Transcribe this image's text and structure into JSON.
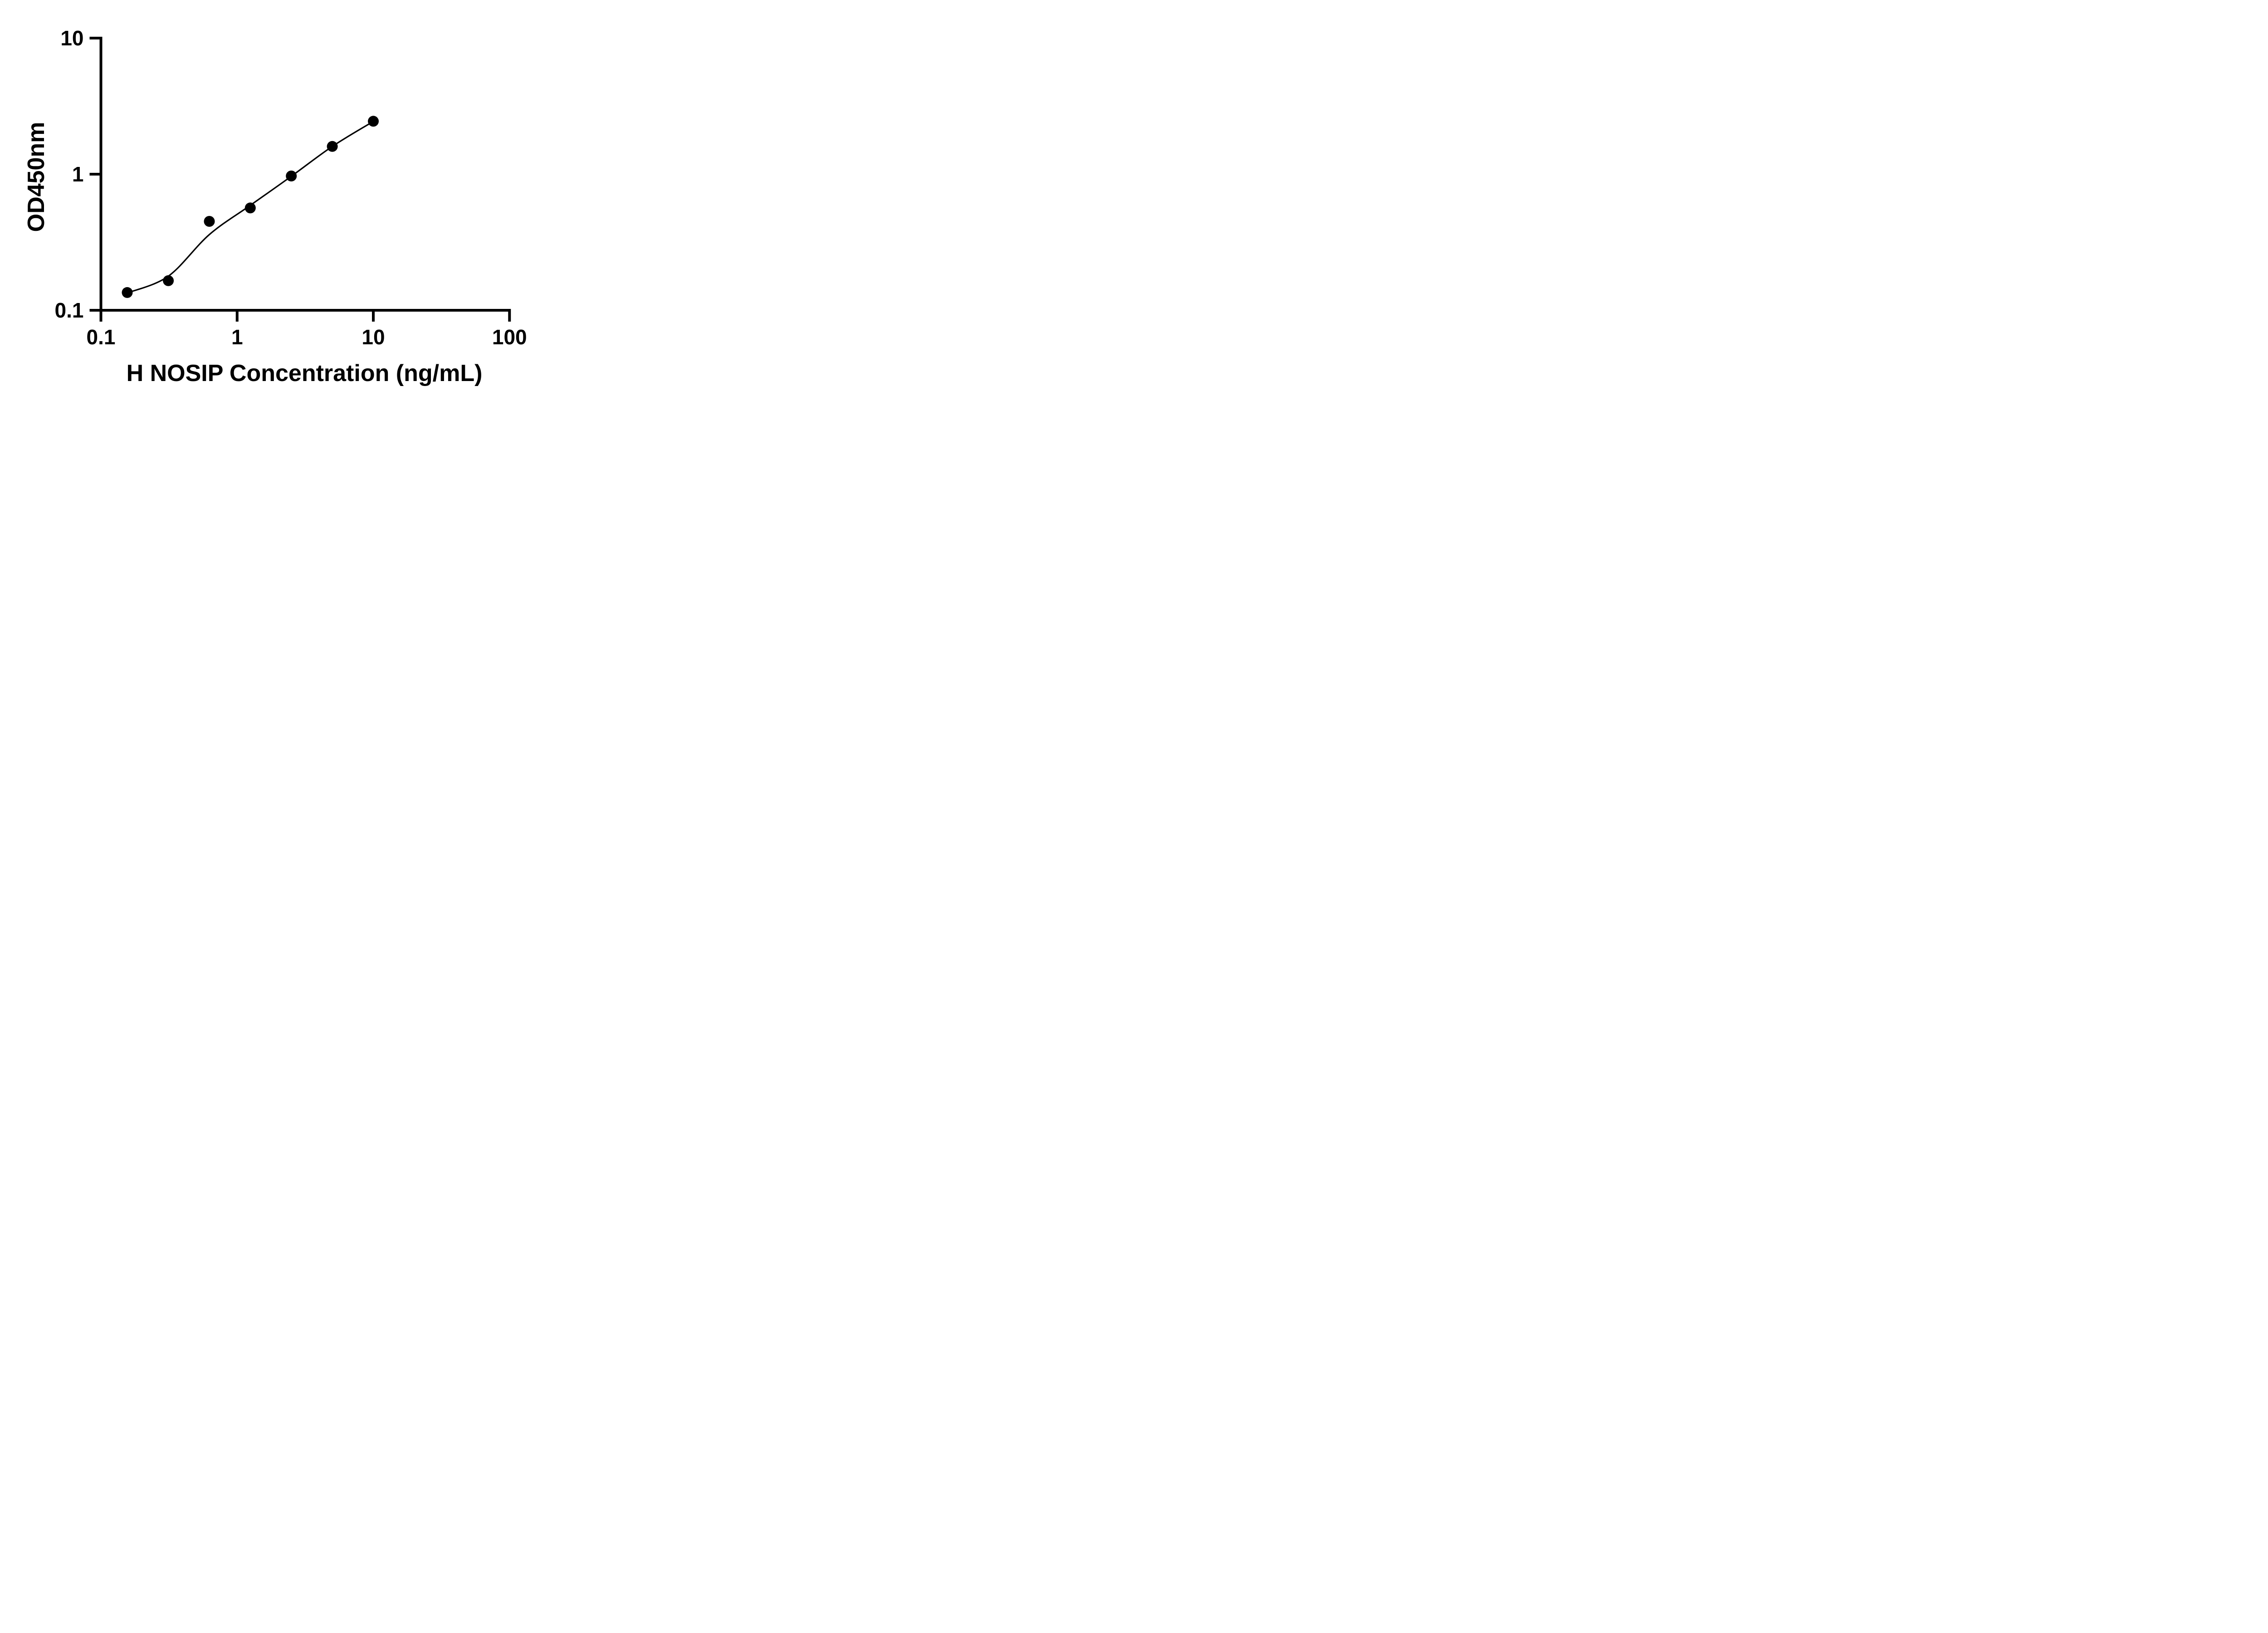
{
  "chart_data": {
    "type": "scatter",
    "title": "",
    "xlabel": "H NOSIP Concentration (ng/mL)",
    "ylabel": "OD450nm",
    "x_scale": "log",
    "y_scale": "log",
    "xlim": [
      0.1,
      100
    ],
    "ylim": [
      0.1,
      10
    ],
    "x_ticks": [
      0.1,
      1,
      10,
      100
    ],
    "x_tick_labels": [
      "0.1",
      "1",
      "10",
      "100"
    ],
    "y_ticks": [
      0.1,
      1,
      10
    ],
    "y_tick_labels": [
      "0.1",
      "1",
      "10"
    ],
    "grid": false,
    "legend": null,
    "marker_color": "#000000",
    "line_color": "#000000",
    "axis_color": "#000000",
    "background_color": "#ffffff",
    "points": [
      {
        "x": 0.156,
        "y": 0.135
      },
      {
        "x": 0.3125,
        "y": 0.165
      },
      {
        "x": 0.625,
        "y": 0.45
      },
      {
        "x": 1.25,
        "y": 0.565
      },
      {
        "x": 2.5,
        "y": 0.97
      },
      {
        "x": 5,
        "y": 1.6
      },
      {
        "x": 10,
        "y": 2.45
      }
    ],
    "fit_curve": [
      {
        "x": 0.156,
        "y": 0.134
      },
      {
        "x": 0.3125,
        "y": 0.178
      },
      {
        "x": 0.625,
        "y": 0.36
      },
      {
        "x": 1.25,
        "y": 0.59
      },
      {
        "x": 2.5,
        "y": 0.965
      },
      {
        "x": 5,
        "y": 1.6
      },
      {
        "x": 10,
        "y": 2.44
      }
    ]
  }
}
